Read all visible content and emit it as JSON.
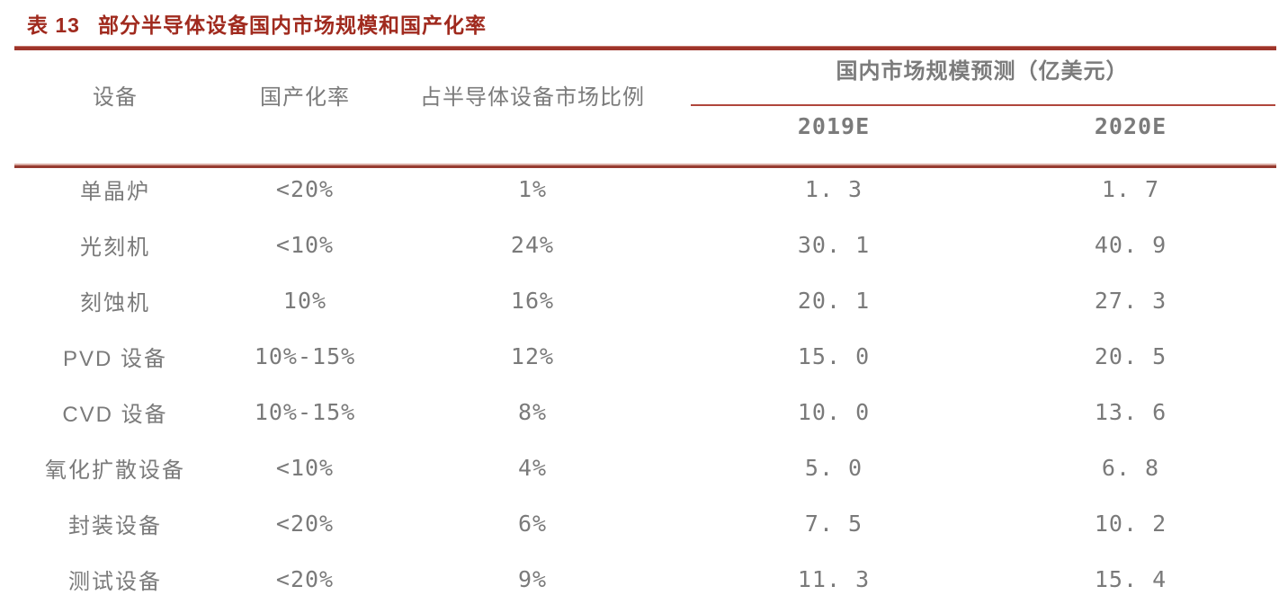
{
  "title": {
    "label": "表 13",
    "text": "部分半导体设备国内市场规模和国产化率"
  },
  "colors": {
    "title_red": "#A02A1E",
    "rule_red_dark": "#9e342a",
    "rule_red_mid": "#963a30",
    "rule_red_thin": "#b0463c",
    "text_gray": "#7a7a7a"
  },
  "table": {
    "headers": {
      "equipment": "设备",
      "localization_rate": "国产化率",
      "market_share": "占半导体设备市场比例",
      "forecast_group": "国内市场规模预测（亿美元）",
      "year_2019": "2019E",
      "year_2020": "2020E"
    },
    "rows": [
      {
        "equipment": "单晶炉",
        "localization_rate": "<20%",
        "market_share": "1%",
        "y2019": "1. 3",
        "y2020": "1. 7"
      },
      {
        "equipment": "光刻机",
        "localization_rate": "<10%",
        "market_share": "24%",
        "y2019": "30. 1",
        "y2020": "40. 9"
      },
      {
        "equipment": "刻蚀机",
        "localization_rate": "10%",
        "market_share": "16%",
        "y2019": "20. 1",
        "y2020": "27. 3"
      },
      {
        "equipment": "PVD 设备",
        "localization_rate": "10%-15%",
        "market_share": "12%",
        "y2019": "15. 0",
        "y2020": "20. 5"
      },
      {
        "equipment": "CVD 设备",
        "localization_rate": "10%-15%",
        "market_share": "8%",
        "y2019": "10. 0",
        "y2020": "13. 6"
      },
      {
        "equipment": "氧化扩散设备",
        "localization_rate": "<10%",
        "market_share": "4%",
        "y2019": "5. 0",
        "y2020": "6. 8"
      },
      {
        "equipment": "封装设备",
        "localization_rate": "<20%",
        "market_share": "6%",
        "y2019": "7. 5",
        "y2020": "10. 2"
      },
      {
        "equipment": "测试设备",
        "localization_rate": "<20%",
        "market_share": "9%",
        "y2019": "11. 3",
        "y2020": "15. 4"
      }
    ]
  },
  "chart_data": {
    "type": "table",
    "title": "表 13 部分半导体设备国内市场规模和国产化率",
    "columns": [
      "设备",
      "国产化率",
      "占半导体设备市场比例",
      "国内市场规模预测（亿美元） 2019E",
      "国内市场规模预测（亿美元） 2020E"
    ],
    "rows": [
      [
        "单晶炉",
        "<20%",
        "1%",
        1.3,
        1.7
      ],
      [
        "光刻机",
        "<10%",
        "24%",
        30.1,
        40.9
      ],
      [
        "刻蚀机",
        "10%",
        "16%",
        20.1,
        27.3
      ],
      [
        "PVD 设备",
        "10%-15%",
        "12%",
        15.0,
        20.5
      ],
      [
        "CVD 设备",
        "10%-15%",
        "8%",
        10.0,
        13.6
      ],
      [
        "氧化扩散设备",
        "<10%",
        "4%",
        5.0,
        6.8
      ],
      [
        "封装设备",
        "<20%",
        "6%",
        7.5,
        10.2
      ],
      [
        "测试设备",
        "<20%",
        "9%",
        11.3,
        15.4
      ]
    ]
  }
}
